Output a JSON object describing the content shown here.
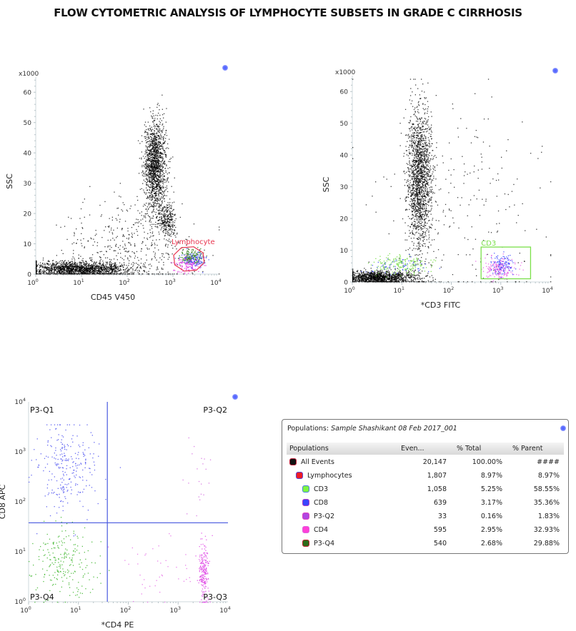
{
  "title": "FLOW CYTOMETRIC ANALYSIS OF LYMPHOCYTE SUBSETS IN GRADE C CIRRHOSIS",
  "chart_data": [
    {
      "type": "scatter",
      "id": "cd45-ssc",
      "xlabel": "CD45 V450",
      "ylabel": "SSC",
      "y_multiplier": "x1000",
      "x_scale": "log",
      "xlim": [
        1,
        10000
      ],
      "ylim": [
        0,
        65
      ],
      "x_ticks": [
        {
          "pow": "0"
        },
        {
          "pow": "1"
        },
        {
          "pow": "2"
        },
        {
          "pow": "3"
        },
        {
          "pow": "4"
        }
      ],
      "y_ticks": [
        "0",
        "10",
        "20",
        "30",
        "40",
        "50",
        "60"
      ],
      "gate": {
        "name": "Lymphocyte",
        "shape": "polygon",
        "color": "#e8344e",
        "x_range": [
          1000,
          5000
        ],
        "y_range": [
          1,
          9
        ]
      },
      "clusters": [
        {
          "population": "All Events",
          "color": "#000000",
          "x_center_log": 0.9,
          "x_spread_log": 0.55,
          "y_center": 1.8,
          "y_spread": 1.2,
          "count": 1600
        },
        {
          "population": "All Events",
          "color": "#000000",
          "x_center_log": 2.6,
          "x_spread_log": 0.12,
          "y_center": 36,
          "y_spread": 7,
          "count": 1500
        },
        {
          "population": "All Events",
          "color": "#000000",
          "x_center_log": 2.85,
          "x_spread_log": 0.1,
          "y_center": 18,
          "y_spread": 3,
          "count": 300
        },
        {
          "population": "All Events",
          "color": "#000000",
          "x_center_log": 2.0,
          "x_spread_log": 0.7,
          "y_center": 8,
          "y_spread": 8,
          "count": 500
        },
        {
          "population": "P3-Q4",
          "color": "#2e7d18",
          "x_center_log": 3.4,
          "x_spread_log": 0.12,
          "y_center": 5.5,
          "y_spread": 1.2,
          "count": 180
        },
        {
          "population": "CD8",
          "color": "#3a44ff",
          "x_center_log": 3.45,
          "x_spread_log": 0.15,
          "y_center": 4.5,
          "y_spread": 1.5,
          "count": 120
        },
        {
          "population": "CD4",
          "color": "#e040e0",
          "x_center_log": 3.3,
          "x_spread_log": 0.15,
          "y_center": 3,
          "y_spread": 1.4,
          "count": 120
        }
      ]
    },
    {
      "type": "scatter",
      "id": "cd3-ssc",
      "xlabel": "*CD3 FITC",
      "ylabel": "SSC",
      "y_multiplier": "x1000",
      "x_scale": "log",
      "xlim": [
        1,
        10000
      ],
      "ylim": [
        0,
        65
      ],
      "x_ticks": [
        {
          "pow": "0"
        },
        {
          "pow": "1"
        },
        {
          "pow": "2"
        },
        {
          "pow": "3"
        },
        {
          "pow": "4"
        }
      ],
      "y_ticks": [
        "0",
        "10",
        "20",
        "30",
        "40",
        "50",
        "60"
      ],
      "gate": {
        "name": "CD3",
        "shape": "rectangle",
        "color": "#7be04a",
        "x_range": [
          400,
          4000
        ],
        "y_range": [
          1,
          11
        ]
      },
      "clusters": [
        {
          "population": "All Events",
          "color": "#000000",
          "x_center_log": 0.5,
          "x_spread_log": 0.4,
          "y_center": 1.5,
          "y_spread": 1,
          "count": 1400
        },
        {
          "population": "All Events",
          "color": "#000000",
          "x_center_log": 1.35,
          "x_spread_log": 0.12,
          "y_center": 33,
          "y_spread": 11,
          "count": 1700
        },
        {
          "population": "All Events",
          "color": "#000000",
          "x_center_log": 2.2,
          "x_spread_log": 0.9,
          "y_center": 20,
          "y_spread": 18,
          "count": 250
        },
        {
          "population": "CD3",
          "color": "#6fdc3a",
          "x_center_log": 0.95,
          "x_spread_log": 0.3,
          "y_center": 5.5,
          "y_spread": 1.5,
          "count": 180
        },
        {
          "population": "CD8",
          "color": "#3a44ff",
          "x_center_log": 0.9,
          "x_spread_log": 0.3,
          "y_center": 5.5,
          "y_spread": 1.5,
          "count": 60
        },
        {
          "population": "CD4",
          "color": "#e55ce5",
          "x_center_log": 2.95,
          "x_spread_log": 0.15,
          "y_center": 4.5,
          "y_spread": 1.6,
          "count": 200
        },
        {
          "population": "CD8",
          "color": "#3a44ff",
          "x_center_log": 3.05,
          "x_spread_log": 0.13,
          "y_center": 5.5,
          "y_spread": 1.5,
          "count": 110
        }
      ]
    },
    {
      "type": "scatter",
      "id": "cd4-cd8",
      "xlabel": "*CD4 PE",
      "ylabel": "CD8 APC",
      "x_scale": "log",
      "y_scale": "log",
      "xlim": [
        1,
        10000
      ],
      "ylim": [
        1,
        10000
      ],
      "x_ticks": [
        {
          "pow": "0"
        },
        {
          "pow": "1"
        },
        {
          "pow": "2"
        },
        {
          "pow": "3"
        },
        {
          "pow": "4"
        }
      ],
      "y_ticks": [
        {
          "pow": "0"
        },
        {
          "pow": "1"
        },
        {
          "pow": "2"
        },
        {
          "pow": "3"
        },
        {
          "pow": "4"
        }
      ],
      "quadrant_divider": {
        "x": 38,
        "y": 38,
        "color": "#4a5ae0"
      },
      "quadrants": [
        "P3-Q1",
        "P3-Q2",
        "P3-Q3",
        "P3-Q4"
      ],
      "clusters": [
        {
          "population": "CD8",
          "color": "#4b50f0",
          "x_center_log": 0.75,
          "x_spread_log": 0.3,
          "y_center_log": 2.7,
          "y_spread_log": 0.45,
          "count": 260
        },
        {
          "population": "P3-Q4",
          "color": "#3cb52a",
          "x_center_log": 0.7,
          "x_spread_log": 0.3,
          "y_center_log": 0.75,
          "y_spread_log": 0.35,
          "count": 220
        },
        {
          "population": "CD4",
          "color": "#e04be6",
          "x_center_log": 3.5,
          "x_spread_log": 0.05,
          "y_center_log": 0.6,
          "y_spread_log": 0.3,
          "count": 220
        },
        {
          "population": "CD4",
          "color": "#e66be6",
          "x_center_log": 2.6,
          "x_spread_log": 0.4,
          "y_center_log": 0.6,
          "y_spread_log": 0.35,
          "count": 40
        },
        {
          "population": "P3-Q2",
          "color": "#d46be0",
          "x_center_log": 3.4,
          "x_spread_log": 0.15,
          "y_center_log": 2.5,
          "y_spread_log": 0.5,
          "count": 20
        }
      ]
    }
  ],
  "populations_panel": {
    "label": "Populations:",
    "sample": "Sample Shashikant 08 Feb 2017_001",
    "columns": [
      "Populations",
      "Even...",
      "% Total",
      "% Parent"
    ],
    "rows": [
      {
        "name": "All Events",
        "events": "20,147",
        "pct_total": "100.00%",
        "pct_parent": "####",
        "color": "#111111",
        "border": "#c0203a",
        "indent": 0
      },
      {
        "name": "Lymphocytes",
        "events": "1,807",
        "pct_total": "8.97%",
        "pct_parent": "8.97%",
        "color": "#ee1c24",
        "border": "#5a3fd8",
        "indent": 1
      },
      {
        "name": "CD3",
        "events": "1,058",
        "pct_total": "5.25%",
        "pct_parent": "58.55%",
        "color": "#7ef542",
        "border": "#4a7ae0",
        "indent": 2
      },
      {
        "name": "CD8",
        "events": "639",
        "pct_total": "3.17%",
        "pct_parent": "35.36%",
        "color": "#3a44ff",
        "border": "#b03ac0",
        "indent": 2
      },
      {
        "name": "P3-Q2",
        "events": "33",
        "pct_total": "0.16%",
        "pct_parent": "1.83%",
        "color": "#b046e0",
        "border": "#e040c0",
        "indent": 2
      },
      {
        "name": "CD4",
        "events": "595",
        "pct_total": "2.95%",
        "pct_parent": "32.93%",
        "color": "#ff40d8",
        "border": "#e060e0",
        "indent": 2
      },
      {
        "name": "P3-Q4",
        "events": "540",
        "pct_total": "2.68%",
        "pct_parent": "29.88%",
        "color": "#2e6b1a",
        "border": "#c02030",
        "indent": 2
      }
    ]
  }
}
